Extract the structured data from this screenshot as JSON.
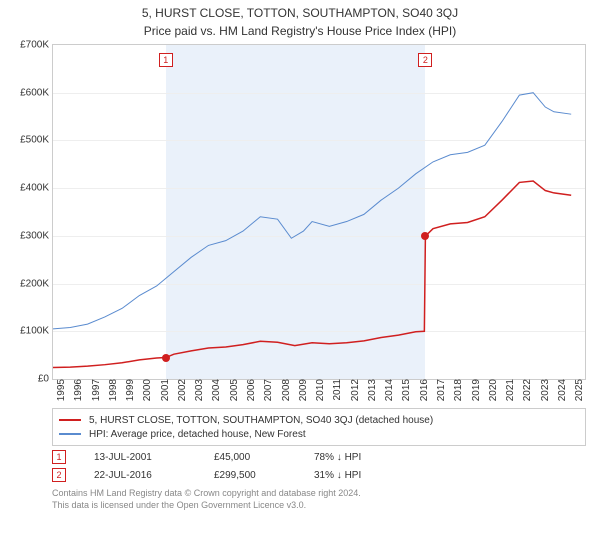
{
  "title": "5, HURST CLOSE, TOTTON, SOUTHAMPTON, SO40 3QJ",
  "subtitle": "Price paid vs. HM Land Registry's House Price Index (HPI)",
  "chart": {
    "type": "line",
    "background_color": "#ffffff",
    "grid_color": "#eeeeee",
    "axis_color": "#cccccc",
    "shade_color": "#eaf1fa",
    "x_years": [
      1995,
      1996,
      1997,
      1998,
      1999,
      2000,
      2001,
      2002,
      2003,
      2004,
      2005,
      2006,
      2007,
      2008,
      2009,
      2010,
      2011,
      2012,
      2013,
      2014,
      2015,
      2016,
      2017,
      2018,
      2019,
      2020,
      2021,
      2022,
      2023,
      2024,
      2025
    ],
    "xlim": [
      1995,
      2025.8
    ],
    "ylim": [
      0,
      700000
    ],
    "ytick_step": 100000,
    "ytick_labels": [
      "£0",
      "£100K",
      "£200K",
      "£300K",
      "£400K",
      "£500K",
      "£600K",
      "£700K"
    ],
    "label_fontsize": 10,
    "shaded_ranges": [
      [
        2001.53,
        2016.56
      ]
    ],
    "series": [
      {
        "id": "hpi",
        "label": "HPI: Average price, detached house, New Forest",
        "color": "#5a8bcf",
        "line_width": 1,
        "points": [
          [
            1995,
            105000
          ],
          [
            1996,
            108000
          ],
          [
            1997,
            115000
          ],
          [
            1998,
            130000
          ],
          [
            1999,
            148000
          ],
          [
            2000,
            175000
          ],
          [
            2001,
            195000
          ],
          [
            2002,
            225000
          ],
          [
            2003,
            255000
          ],
          [
            2004,
            280000
          ],
          [
            2005,
            290000
          ],
          [
            2006,
            310000
          ],
          [
            2007,
            340000
          ],
          [
            2008,
            335000
          ],
          [
            2008.8,
            295000
          ],
          [
            2009.5,
            310000
          ],
          [
            2010,
            330000
          ],
          [
            2011,
            320000
          ],
          [
            2012,
            330000
          ],
          [
            2013,
            345000
          ],
          [
            2014,
            375000
          ],
          [
            2015,
            400000
          ],
          [
            2016,
            430000
          ],
          [
            2017,
            455000
          ],
          [
            2018,
            470000
          ],
          [
            2019,
            475000
          ],
          [
            2020,
            490000
          ],
          [
            2021,
            540000
          ],
          [
            2022,
            595000
          ],
          [
            2022.8,
            600000
          ],
          [
            2023.5,
            570000
          ],
          [
            2024,
            560000
          ],
          [
            2025,
            555000
          ]
        ]
      },
      {
        "id": "property",
        "label": "5, HURST CLOSE, TOTTON, SOUTHAMPTON, SO40 3QJ (detached house)",
        "color": "#d01f1f",
        "line_width": 1.5,
        "points": [
          [
            1995,
            24000
          ],
          [
            1996,
            25000
          ],
          [
            1997,
            27000
          ],
          [
            1998,
            30000
          ],
          [
            1999,
            34000
          ],
          [
            2000,
            40000
          ],
          [
            2001,
            44000
          ],
          [
            2001.53,
            45000
          ],
          [
            2002,
            52000
          ],
          [
            2003,
            59000
          ],
          [
            2004,
            65000
          ],
          [
            2005,
            67000
          ],
          [
            2006,
            72000
          ],
          [
            2007,
            79000
          ],
          [
            2008,
            77000
          ],
          [
            2009,
            70000
          ],
          [
            2010,
            76000
          ],
          [
            2011,
            74000
          ],
          [
            2012,
            76000
          ],
          [
            2013,
            80000
          ],
          [
            2014,
            87000
          ],
          [
            2015,
            92000
          ],
          [
            2016,
            99000
          ],
          [
            2016.5,
            100000
          ],
          [
            2016.56,
            299500
          ],
          [
            2017,
            315000
          ],
          [
            2018,
            325000
          ],
          [
            2019,
            328000
          ],
          [
            2020,
            340000
          ],
          [
            2021,
            375000
          ],
          [
            2022,
            412000
          ],
          [
            2022.8,
            415000
          ],
          [
            2023.5,
            395000
          ],
          [
            2024,
            390000
          ],
          [
            2025,
            385000
          ]
        ]
      }
    ],
    "sale_markers": [
      {
        "num": "1",
        "x": 2001.53,
        "y": 45000,
        "color": "#d01f1f"
      },
      {
        "num": "2",
        "x": 2016.56,
        "y": 299500,
        "color": "#d01f1f"
      }
    ]
  },
  "legend": {
    "items": [
      {
        "color": "#d01f1f",
        "label": "5, HURST CLOSE, TOTTON, SOUTHAMPTON, SO40 3QJ (detached house)"
      },
      {
        "color": "#5a8bcf",
        "label": "HPI: Average price, detached house, New Forest"
      }
    ]
  },
  "transactions": [
    {
      "num": "1",
      "date": "13-JUL-2001",
      "price": "£45,000",
      "pct": "78% ↓ HPI"
    },
    {
      "num": "2",
      "date": "22-JUL-2016",
      "price": "£299,500",
      "pct": "31% ↓ HPI"
    }
  ],
  "footer": {
    "line1": "Contains HM Land Registry data © Crown copyright and database right 2024.",
    "line2": "This data is licensed under the Open Government Licence v3.0."
  }
}
